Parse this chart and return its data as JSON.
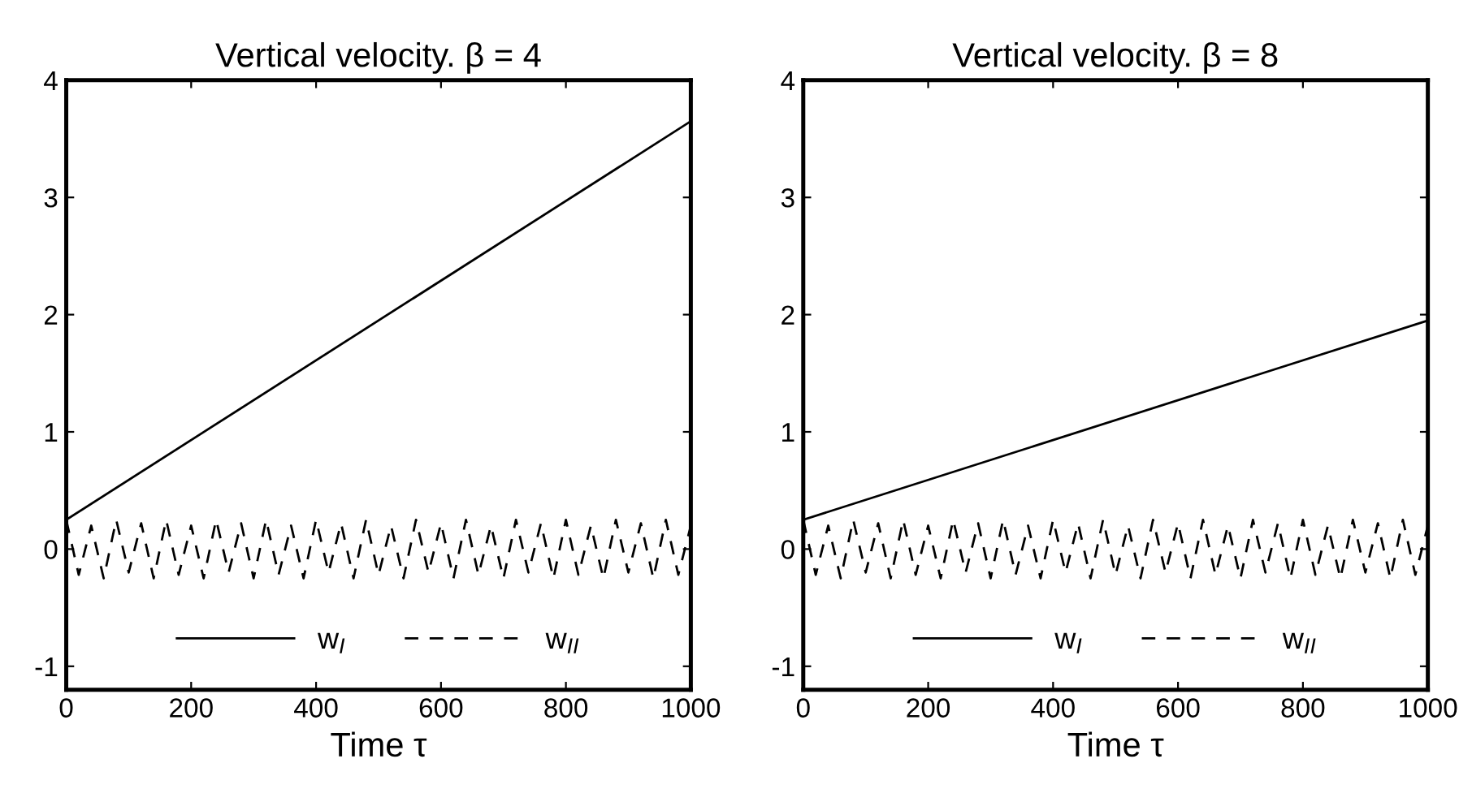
{
  "chart_data": [
    {
      "type": "line",
      "title": "Vertical velocity. β = 4",
      "xlabel": "Time τ",
      "xlim": [
        0,
        1000
      ],
      "ylim": [
        -1.2,
        4
      ],
      "xticks": [
        0,
        200,
        400,
        600,
        800,
        1000
      ],
      "yticks": [
        -1,
        0,
        1,
        2,
        3,
        4
      ],
      "legend": "bottom",
      "grid": false,
      "series": [
        {
          "name": "w$_{I}$",
          "color": "#000000",
          "line_style": "solid",
          "x": [
            0,
            1000
          ],
          "values": [
            0.25,
            3.65
          ]
        },
        {
          "name": "w$_{II}$",
          "color": "#000000",
          "line_style": "dashed",
          "x": [
            0,
            20,
            40,
            60,
            80,
            100,
            120,
            140,
            160,
            180,
            200,
            220,
            240,
            260,
            280,
            300,
            320,
            340,
            360,
            380,
            400,
            420,
            440,
            460,
            480,
            500,
            520,
            540,
            560,
            580,
            600,
            620,
            640,
            660,
            680,
            700,
            720,
            740,
            760,
            780,
            800,
            820,
            840,
            860,
            880,
            900,
            920,
            940,
            960,
            980,
            1000
          ],
          "values": [
            0.25,
            -0.22,
            0.2,
            -0.25,
            0.25,
            -0.2,
            0.22,
            -0.25,
            0.25,
            -0.22,
            0.2,
            -0.25,
            0.25,
            -0.2,
            0.22,
            -0.25,
            0.25,
            -0.22,
            0.2,
            -0.25,
            0.25,
            -0.2,
            0.22,
            -0.25,
            0.25,
            -0.22,
            0.2,
            -0.25,
            0.25,
            -0.2,
            0.22,
            -0.25,
            0.25,
            -0.22,
            0.2,
            -0.25,
            0.25,
            -0.2,
            0.22,
            -0.25,
            0.25,
            -0.22,
            0.2,
            -0.25,
            0.25,
            -0.2,
            0.22,
            -0.25,
            0.25,
            -0.22,
            0.2
          ]
        }
      ]
    },
    {
      "type": "line",
      "title": "Vertical velocity. β = 8",
      "xlabel": "Time τ",
      "xlim": [
        0,
        1000
      ],
      "ylim": [
        -1.2,
        4
      ],
      "xticks": [
        0,
        200,
        400,
        600,
        800,
        1000
      ],
      "yticks": [
        -1,
        0,
        1,
        2,
        3,
        4
      ],
      "legend": "bottom",
      "grid": false,
      "series": [
        {
          "name": "w$_{I}$",
          "color": "#000000",
          "line_style": "solid",
          "x": [
            0,
            1000
          ],
          "values": [
            0.25,
            1.95
          ]
        },
        {
          "name": "w$_{II}$",
          "color": "#000000",
          "line_style": "dashed",
          "x": [
            0,
            20,
            40,
            60,
            80,
            100,
            120,
            140,
            160,
            180,
            200,
            220,
            240,
            260,
            280,
            300,
            320,
            340,
            360,
            380,
            400,
            420,
            440,
            460,
            480,
            500,
            520,
            540,
            560,
            580,
            600,
            620,
            640,
            660,
            680,
            700,
            720,
            740,
            760,
            780,
            800,
            820,
            840,
            860,
            880,
            900,
            920,
            940,
            960,
            980,
            1000
          ],
          "values": [
            0.25,
            -0.22,
            0.2,
            -0.25,
            0.25,
            -0.2,
            0.22,
            -0.25,
            0.25,
            -0.22,
            0.2,
            -0.25,
            0.25,
            -0.2,
            0.22,
            -0.25,
            0.25,
            -0.22,
            0.2,
            -0.25,
            0.25,
            -0.2,
            0.22,
            -0.25,
            0.25,
            -0.22,
            0.2,
            -0.25,
            0.25,
            -0.2,
            0.22,
            -0.25,
            0.25,
            -0.22,
            0.2,
            -0.25,
            0.25,
            -0.2,
            0.22,
            -0.25,
            0.25,
            -0.22,
            0.2,
            -0.25,
            0.25,
            -0.2,
            0.22,
            -0.25,
            0.25,
            -0.22,
            0.2
          ]
        }
      ]
    }
  ]
}
